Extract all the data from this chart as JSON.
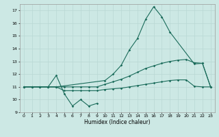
{
  "xlabel": "Humidex (Indice chaleur)",
  "bg_color": "#cce8e4",
  "grid_color": "#b8d8d4",
  "line_color": "#1a6b5a",
  "xlim": [
    -0.5,
    23.5
  ],
  "ylim": [
    9,
    17.5
  ],
  "xticks": [
    0,
    1,
    2,
    3,
    4,
    5,
    6,
    7,
    8,
    9,
    10,
    11,
    12,
    13,
    14,
    15,
    16,
    17,
    18,
    19,
    20,
    21,
    22,
    23
  ],
  "yticks": [
    9,
    10,
    11,
    12,
    13,
    14,
    15,
    16,
    17
  ],
  "line1_x": [
    0,
    1,
    2,
    3,
    4,
    5,
    6,
    7,
    8,
    9
  ],
  "line1_y": [
    11,
    11,
    11,
    11,
    11.9,
    10.45,
    9.5,
    10.0,
    9.5,
    9.7
  ],
  "line2_x": [
    0,
    1,
    2,
    3,
    4,
    10,
    11,
    12,
    13,
    14,
    15,
    16,
    17,
    18,
    21,
    22,
    23
  ],
  "line2_y": [
    11,
    11,
    11,
    11,
    11,
    11.5,
    12.0,
    12.7,
    13.9,
    14.8,
    16.3,
    17.3,
    16.5,
    15.3,
    12.8,
    12.85,
    11.0
  ],
  "line3_x": [
    0,
    1,
    2,
    3,
    4,
    5,
    6,
    7,
    8,
    9,
    10,
    11,
    12,
    13,
    14,
    15,
    16,
    17,
    18,
    19,
    20,
    21,
    22,
    23
  ],
  "line3_y": [
    11,
    11,
    11,
    11,
    11,
    11,
    11,
    11,
    11,
    11,
    11.2,
    11.4,
    11.6,
    11.85,
    12.15,
    12.45,
    12.65,
    12.85,
    13.0,
    13.1,
    13.15,
    12.9,
    12.85,
    11.0
  ],
  "line4_x": [
    0,
    1,
    2,
    3,
    4,
    5,
    6,
    7,
    8,
    9,
    10,
    11,
    12,
    13,
    14,
    15,
    16,
    17,
    18,
    19,
    20,
    21,
    22,
    23
  ],
  "line4_y": [
    11,
    11,
    11,
    11,
    11,
    10.7,
    10.7,
    10.7,
    10.7,
    10.7,
    10.8,
    10.85,
    10.9,
    11.0,
    11.1,
    11.2,
    11.3,
    11.4,
    11.5,
    11.55,
    11.55,
    11.05,
    11.0,
    11.0
  ]
}
